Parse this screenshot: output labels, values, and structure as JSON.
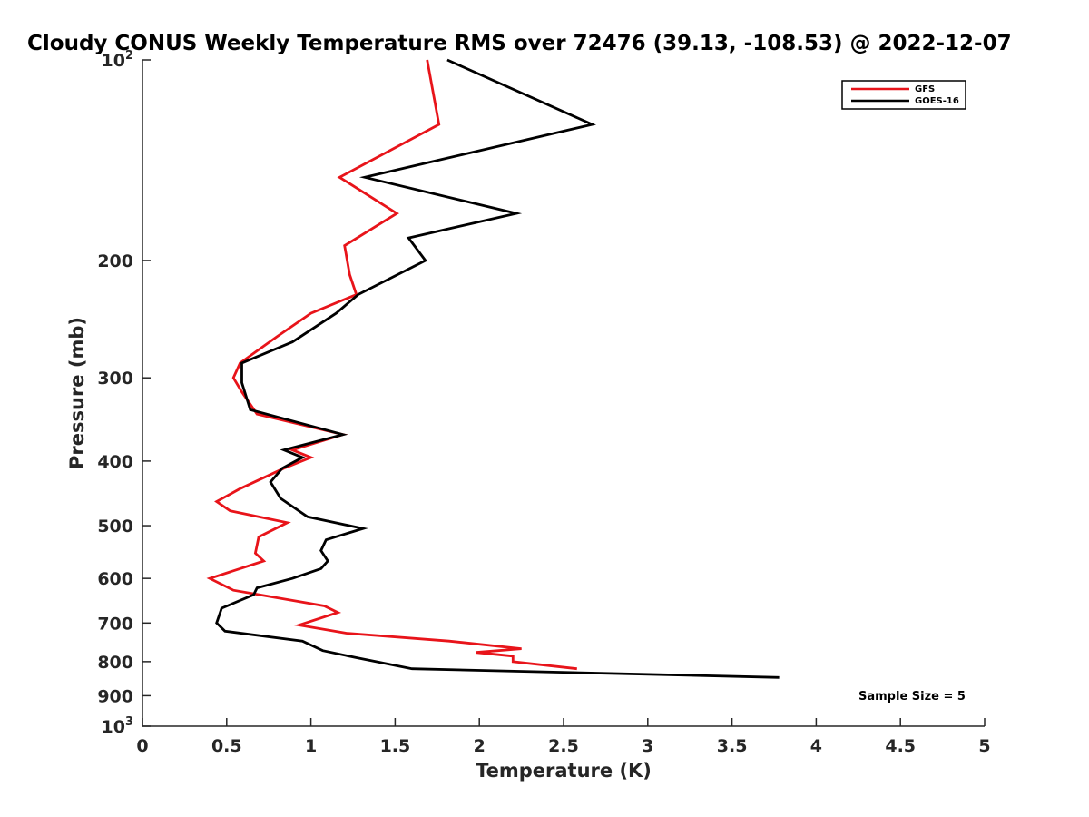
{
  "chart_data": {
    "type": "line",
    "title": "Cloudy CONUS Weekly Temperature RMS over 72476 (39.13, -108.53) @ 2022-12-07",
    "xlabel": "Temperature (K)",
    "ylabel": "Pressure (mb)",
    "xlim": [
      0,
      5
    ],
    "ylim": [
      100,
      1000
    ],
    "y_scale": "log",
    "y_reversed": true,
    "grid": false,
    "legend_position": "top-right",
    "x_ticks": [
      0,
      0.5,
      1,
      1.5,
      2,
      2.5,
      3,
      3.5,
      4,
      4.5,
      5
    ],
    "x_tick_labels": [
      "0",
      "0.5",
      "1",
      "1.5",
      "2",
      "2.5",
      "3",
      "3.5",
      "4",
      "4.5",
      "5"
    ],
    "y_ticks": [
      {
        "value": 100,
        "base": "10",
        "exp": "2"
      },
      {
        "value": 200,
        "label": "200"
      },
      {
        "value": 300,
        "label": "300"
      },
      {
        "value": 400,
        "label": "400"
      },
      {
        "value": 500,
        "label": "500"
      },
      {
        "value": 600,
        "label": "600"
      },
      {
        "value": 700,
        "label": "700"
      },
      {
        "value": 800,
        "label": "800"
      },
      {
        "value": 900,
        "label": "900"
      },
      {
        "value": 1000,
        "base": "10",
        "exp": "3"
      }
    ],
    "series": [
      {
        "name": "GFS",
        "color": "#e8141a",
        "points": [
          [
            1.69,
            100
          ],
          [
            1.76,
            125
          ],
          [
            1.17,
            150
          ],
          [
            1.51,
            170
          ],
          [
            1.2,
            190
          ],
          [
            1.23,
            210
          ],
          [
            1.27,
            225
          ],
          [
            1.0,
            240
          ],
          [
            0.8,
            260
          ],
          [
            0.58,
            285
          ],
          [
            0.54,
            300
          ],
          [
            0.59,
            315
          ],
          [
            0.68,
            340
          ],
          [
            1.19,
            365
          ],
          [
            0.89,
            385
          ],
          [
            1.0,
            395
          ],
          [
            0.84,
            410
          ],
          [
            0.58,
            440
          ],
          [
            0.44,
            460
          ],
          [
            0.52,
            475
          ],
          [
            0.86,
            495
          ],
          [
            0.69,
            520
          ],
          [
            0.67,
            550
          ],
          [
            0.72,
            565
          ],
          [
            0.4,
            600
          ],
          [
            0.54,
            625
          ],
          [
            1.08,
            660
          ],
          [
            1.16,
            675
          ],
          [
            0.93,
            705
          ],
          [
            1.21,
            725
          ],
          [
            1.82,
            745
          ],
          [
            2.25,
            765
          ],
          [
            1.98,
            775
          ],
          [
            2.2,
            785
          ],
          [
            2.2,
            800
          ],
          [
            2.58,
            820
          ]
        ]
      },
      {
        "name": "GOES-16",
        "color": "#000000",
        "points": [
          [
            1.81,
            100
          ],
          [
            2.67,
            125
          ],
          [
            1.32,
            150
          ],
          [
            2.22,
            170
          ],
          [
            1.58,
            185
          ],
          [
            1.68,
            200
          ],
          [
            1.28,
            225
          ],
          [
            1.15,
            240
          ],
          [
            0.89,
            265
          ],
          [
            0.59,
            285
          ],
          [
            0.59,
            305
          ],
          [
            0.64,
            335
          ],
          [
            1.19,
            365
          ],
          [
            0.84,
            385
          ],
          [
            0.95,
            395
          ],
          [
            0.83,
            410
          ],
          [
            0.76,
            430
          ],
          [
            0.82,
            455
          ],
          [
            0.98,
            485
          ],
          [
            1.31,
            505
          ],
          [
            1.09,
            525
          ],
          [
            1.06,
            545
          ],
          [
            1.1,
            565
          ],
          [
            1.06,
            580
          ],
          [
            0.89,
            600
          ],
          [
            0.68,
            620
          ],
          [
            0.66,
            635
          ],
          [
            0.47,
            665
          ],
          [
            0.44,
            700
          ],
          [
            0.49,
            720
          ],
          [
            0.95,
            745
          ],
          [
            1.07,
            770
          ],
          [
            1.28,
            790
          ],
          [
            1.6,
            820
          ],
          [
            3.78,
            845
          ]
        ]
      }
    ],
    "annotation": "Sample Size = 5"
  }
}
